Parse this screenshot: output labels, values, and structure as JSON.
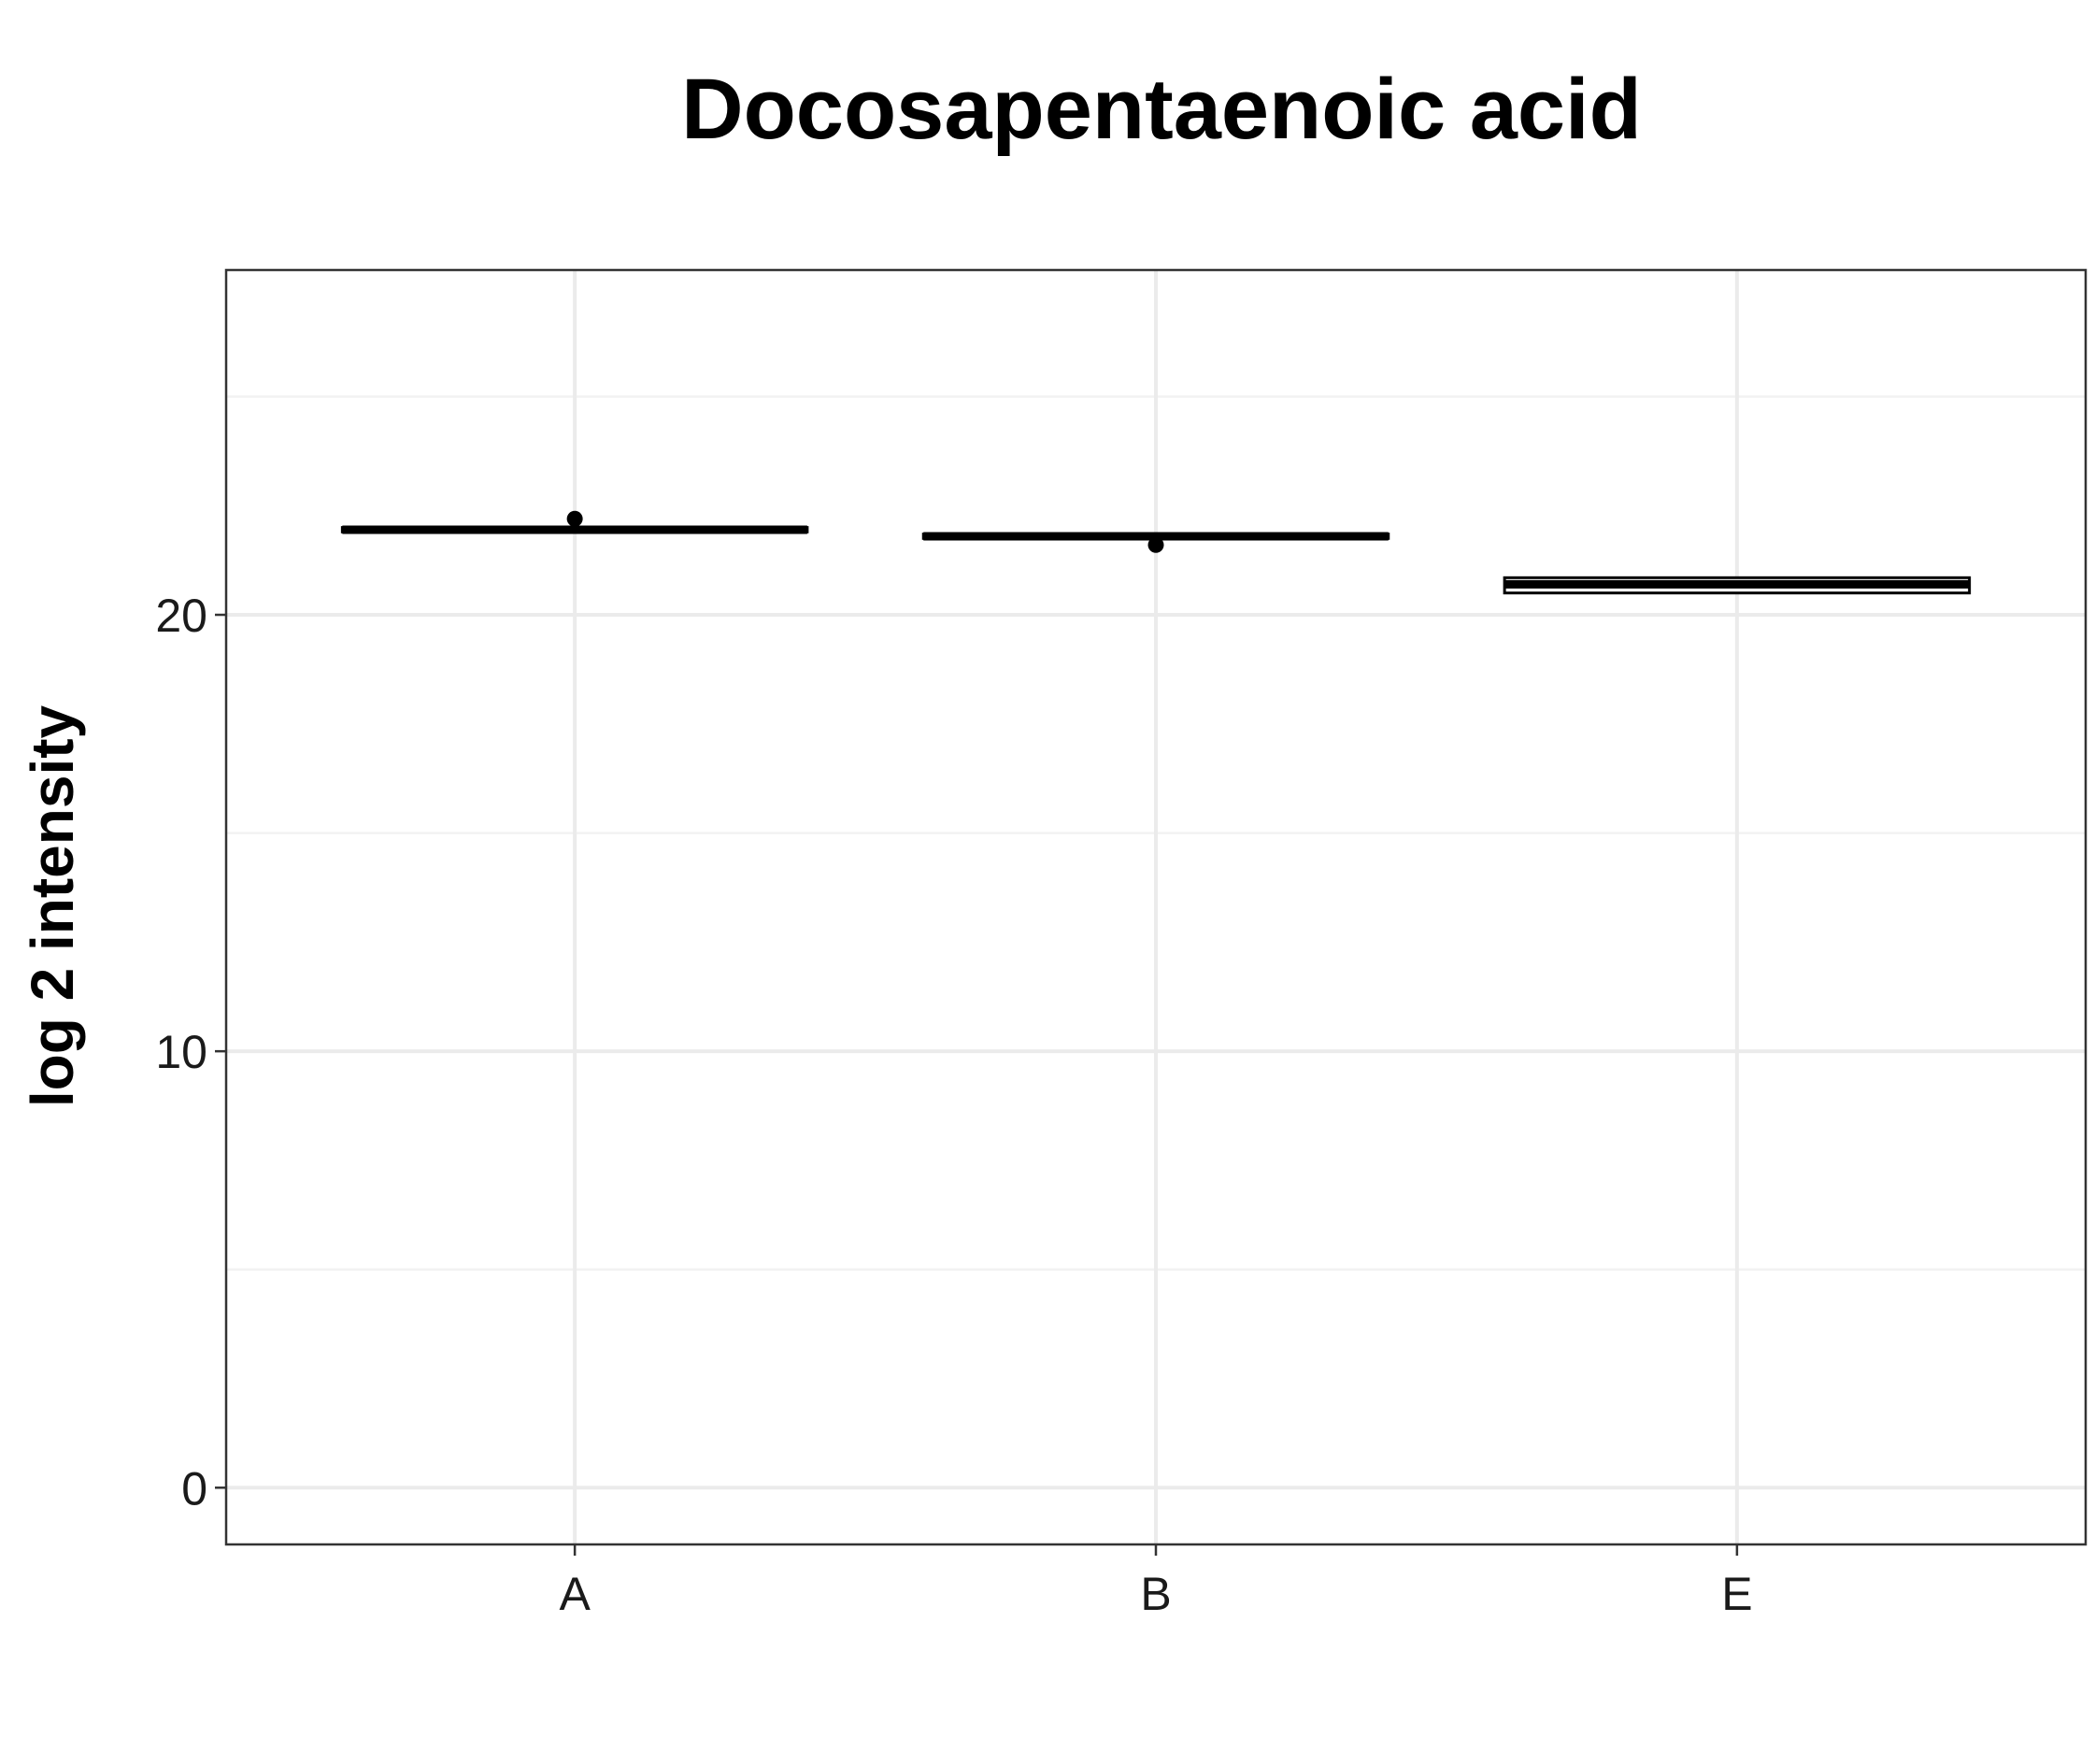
{
  "chart_data": {
    "type": "box",
    "title": "Docosapentaenoic acid",
    "xlabel": "",
    "ylabel": "log 2 intensity",
    "categories": [
      "A",
      "B",
      "E"
    ],
    "ylim": [
      -1.3,
      27.9
    ],
    "yticks": [
      0,
      10,
      20
    ],
    "grid": true,
    "boxes": [
      {
        "category": "A",
        "q1": 21.9,
        "median": 21.95,
        "q3": 22.0,
        "whisker_low": 21.9,
        "whisker_high": 22.0,
        "outliers": [
          22.2
        ]
      },
      {
        "category": "B",
        "q1": 21.75,
        "median": 21.8,
        "q3": 21.85,
        "whisker_low": 21.75,
        "whisker_high": 21.85,
        "outliers": [
          21.6
        ]
      },
      {
        "category": "E",
        "q1": 20.5,
        "median": 20.7,
        "q3": 20.85,
        "whisker_low": 20.5,
        "whisker_high": 20.85,
        "outliers": []
      }
    ]
  }
}
